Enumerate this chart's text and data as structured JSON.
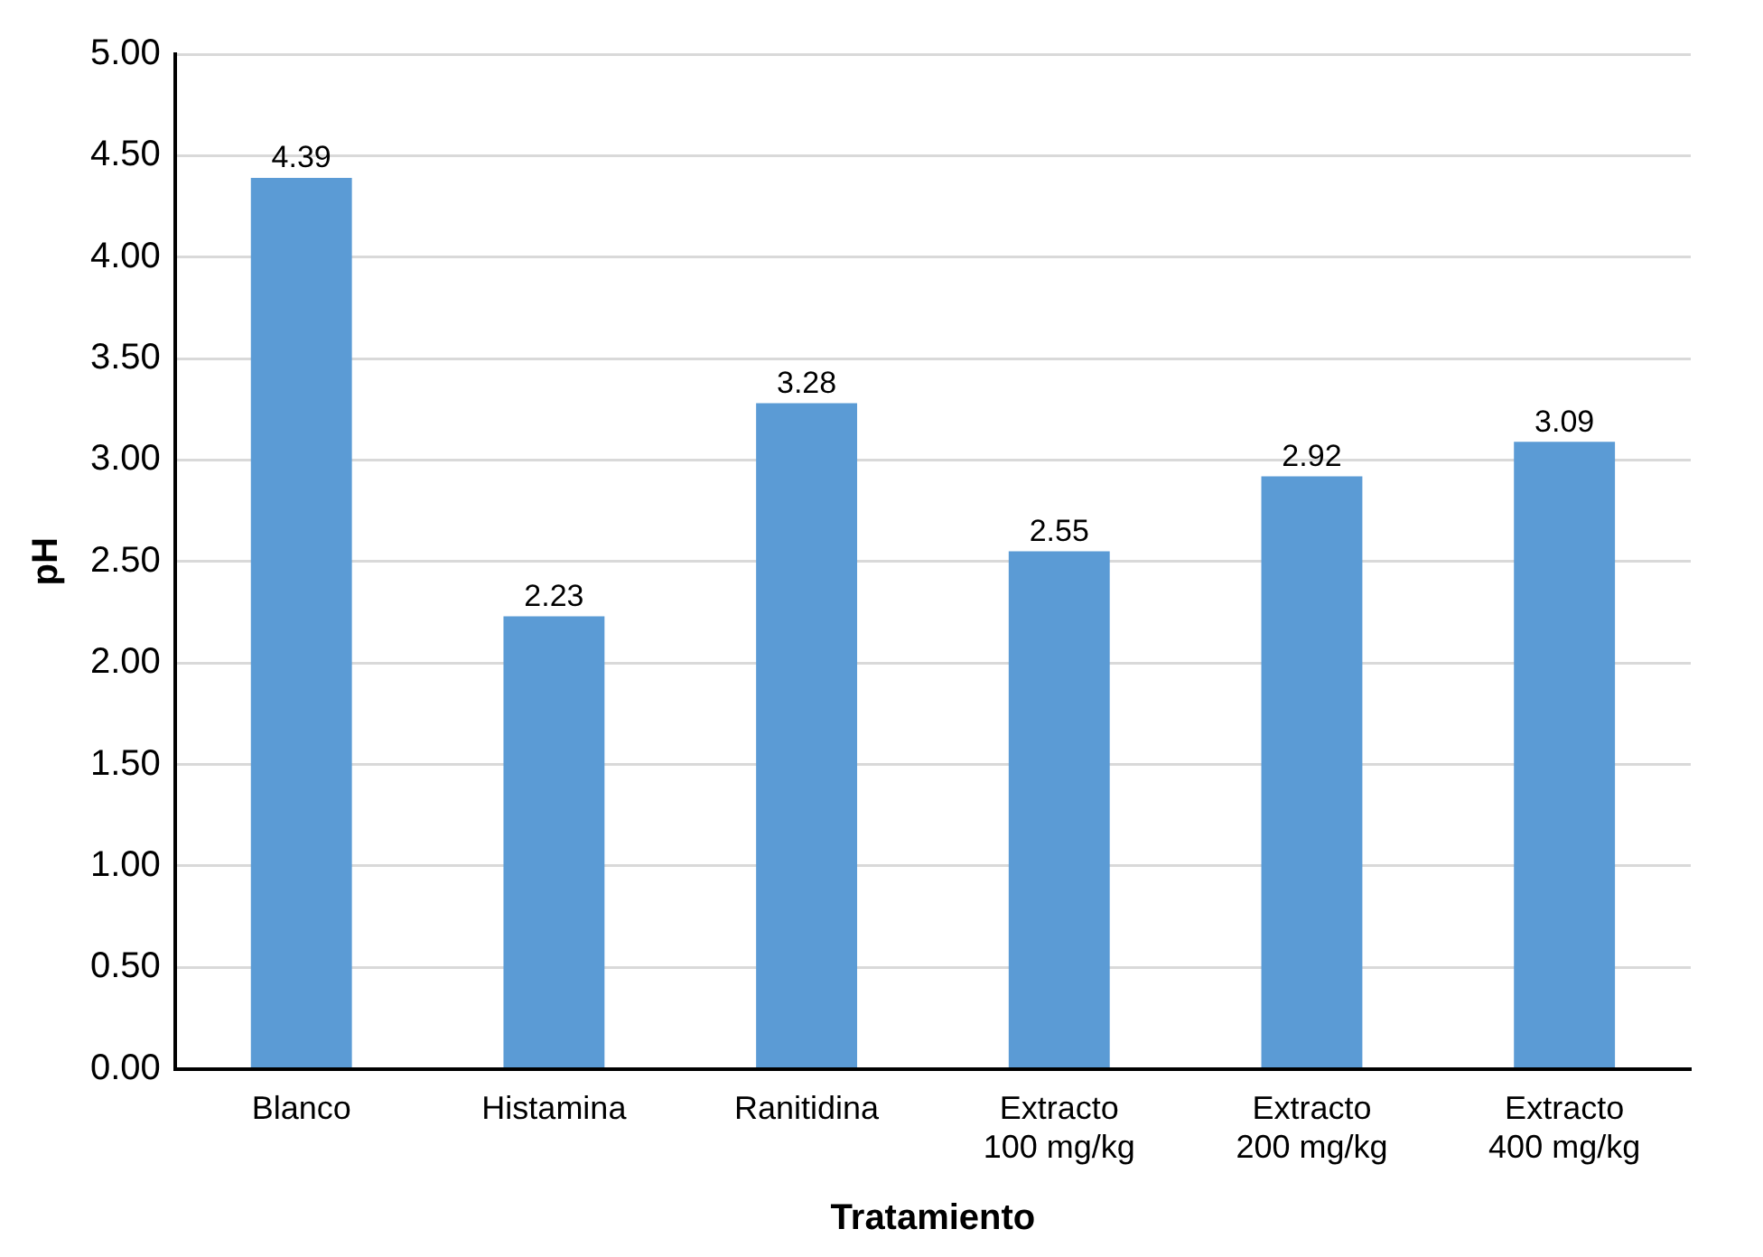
{
  "chart_data": {
    "type": "bar",
    "xlabel": "Tratamiento",
    "ylabel": "pH",
    "categories": [
      "Blanco",
      "Histamina",
      "Ranitidina",
      "Extracto 100 mg/kg",
      "Extracto 200 mg/kg",
      "Extracto 400 mg/kg"
    ],
    "values": [
      4.39,
      2.23,
      3.28,
      2.55,
      2.92,
      3.09
    ],
    "color": "#5b9bd5",
    "data_labels": true,
    "grid": "y",
    "legend": false,
    "ylim": [
      0,
      5
    ],
    "yticks": [
      {
        "value": 0,
        "label": "0.00"
      },
      {
        "value": 0.5,
        "label": "0.50"
      },
      {
        "value": 1,
        "label": "1.00"
      },
      {
        "value": 1.5,
        "label": "1.50"
      },
      {
        "value": 2,
        "label": "2.00"
      },
      {
        "value": 2.5,
        "label": "2.50"
      },
      {
        "value": 3,
        "label": "3.00"
      },
      {
        "value": 3.5,
        "label": "3.50"
      },
      {
        "value": 4,
        "label": "4.00"
      },
      {
        "value": 4.5,
        "label": "4.50"
      },
      {
        "value": 5,
        "label": "5.00"
      }
    ]
  }
}
